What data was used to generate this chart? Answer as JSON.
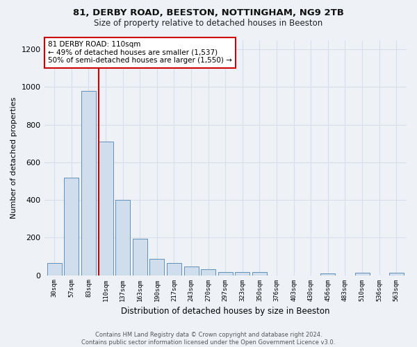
{
  "title1": "81, DERBY ROAD, BEESTON, NOTTINGHAM, NG9 2TB",
  "title2": "Size of property relative to detached houses in Beeston",
  "xlabel": "Distribution of detached houses by size in Beeston",
  "ylabel": "Number of detached properties",
  "categories": [
    "30sqm",
    "57sqm",
    "83sqm",
    "110sqm",
    "137sqm",
    "163sqm",
    "190sqm",
    "217sqm",
    "243sqm",
    "270sqm",
    "297sqm",
    "323sqm",
    "350sqm",
    "376sqm",
    "403sqm",
    "430sqm",
    "456sqm",
    "483sqm",
    "510sqm",
    "536sqm",
    "563sqm"
  ],
  "values": [
    65,
    520,
    980,
    710,
    400,
    195,
    85,
    65,
    45,
    30,
    15,
    18,
    18,
    0,
    0,
    0,
    10,
    0,
    12,
    0,
    12
  ],
  "bar_color": "#cfdded",
  "bar_edge_color": "#6090b8",
  "redline_index": 3,
  "annotation_text": "81 DERBY ROAD: 110sqm\n← 49% of detached houses are smaller (1,537)\n50% of semi-detached houses are larger (1,550) →",
  "annotation_box_color": "#ffffff",
  "annotation_box_edge_color": "#cc0000",
  "redline_color": "#cc0000",
  "ylim": [
    0,
    1250
  ],
  "yticks": [
    0,
    200,
    400,
    600,
    800,
    1000,
    1200
  ],
  "footnote": "Contains HM Land Registry data © Crown copyright and database right 2024.\nContains public sector information licensed under the Open Government Licence v3.0.",
  "bg_color": "#eef2f7",
  "grid_color": "#d8dfe8"
}
